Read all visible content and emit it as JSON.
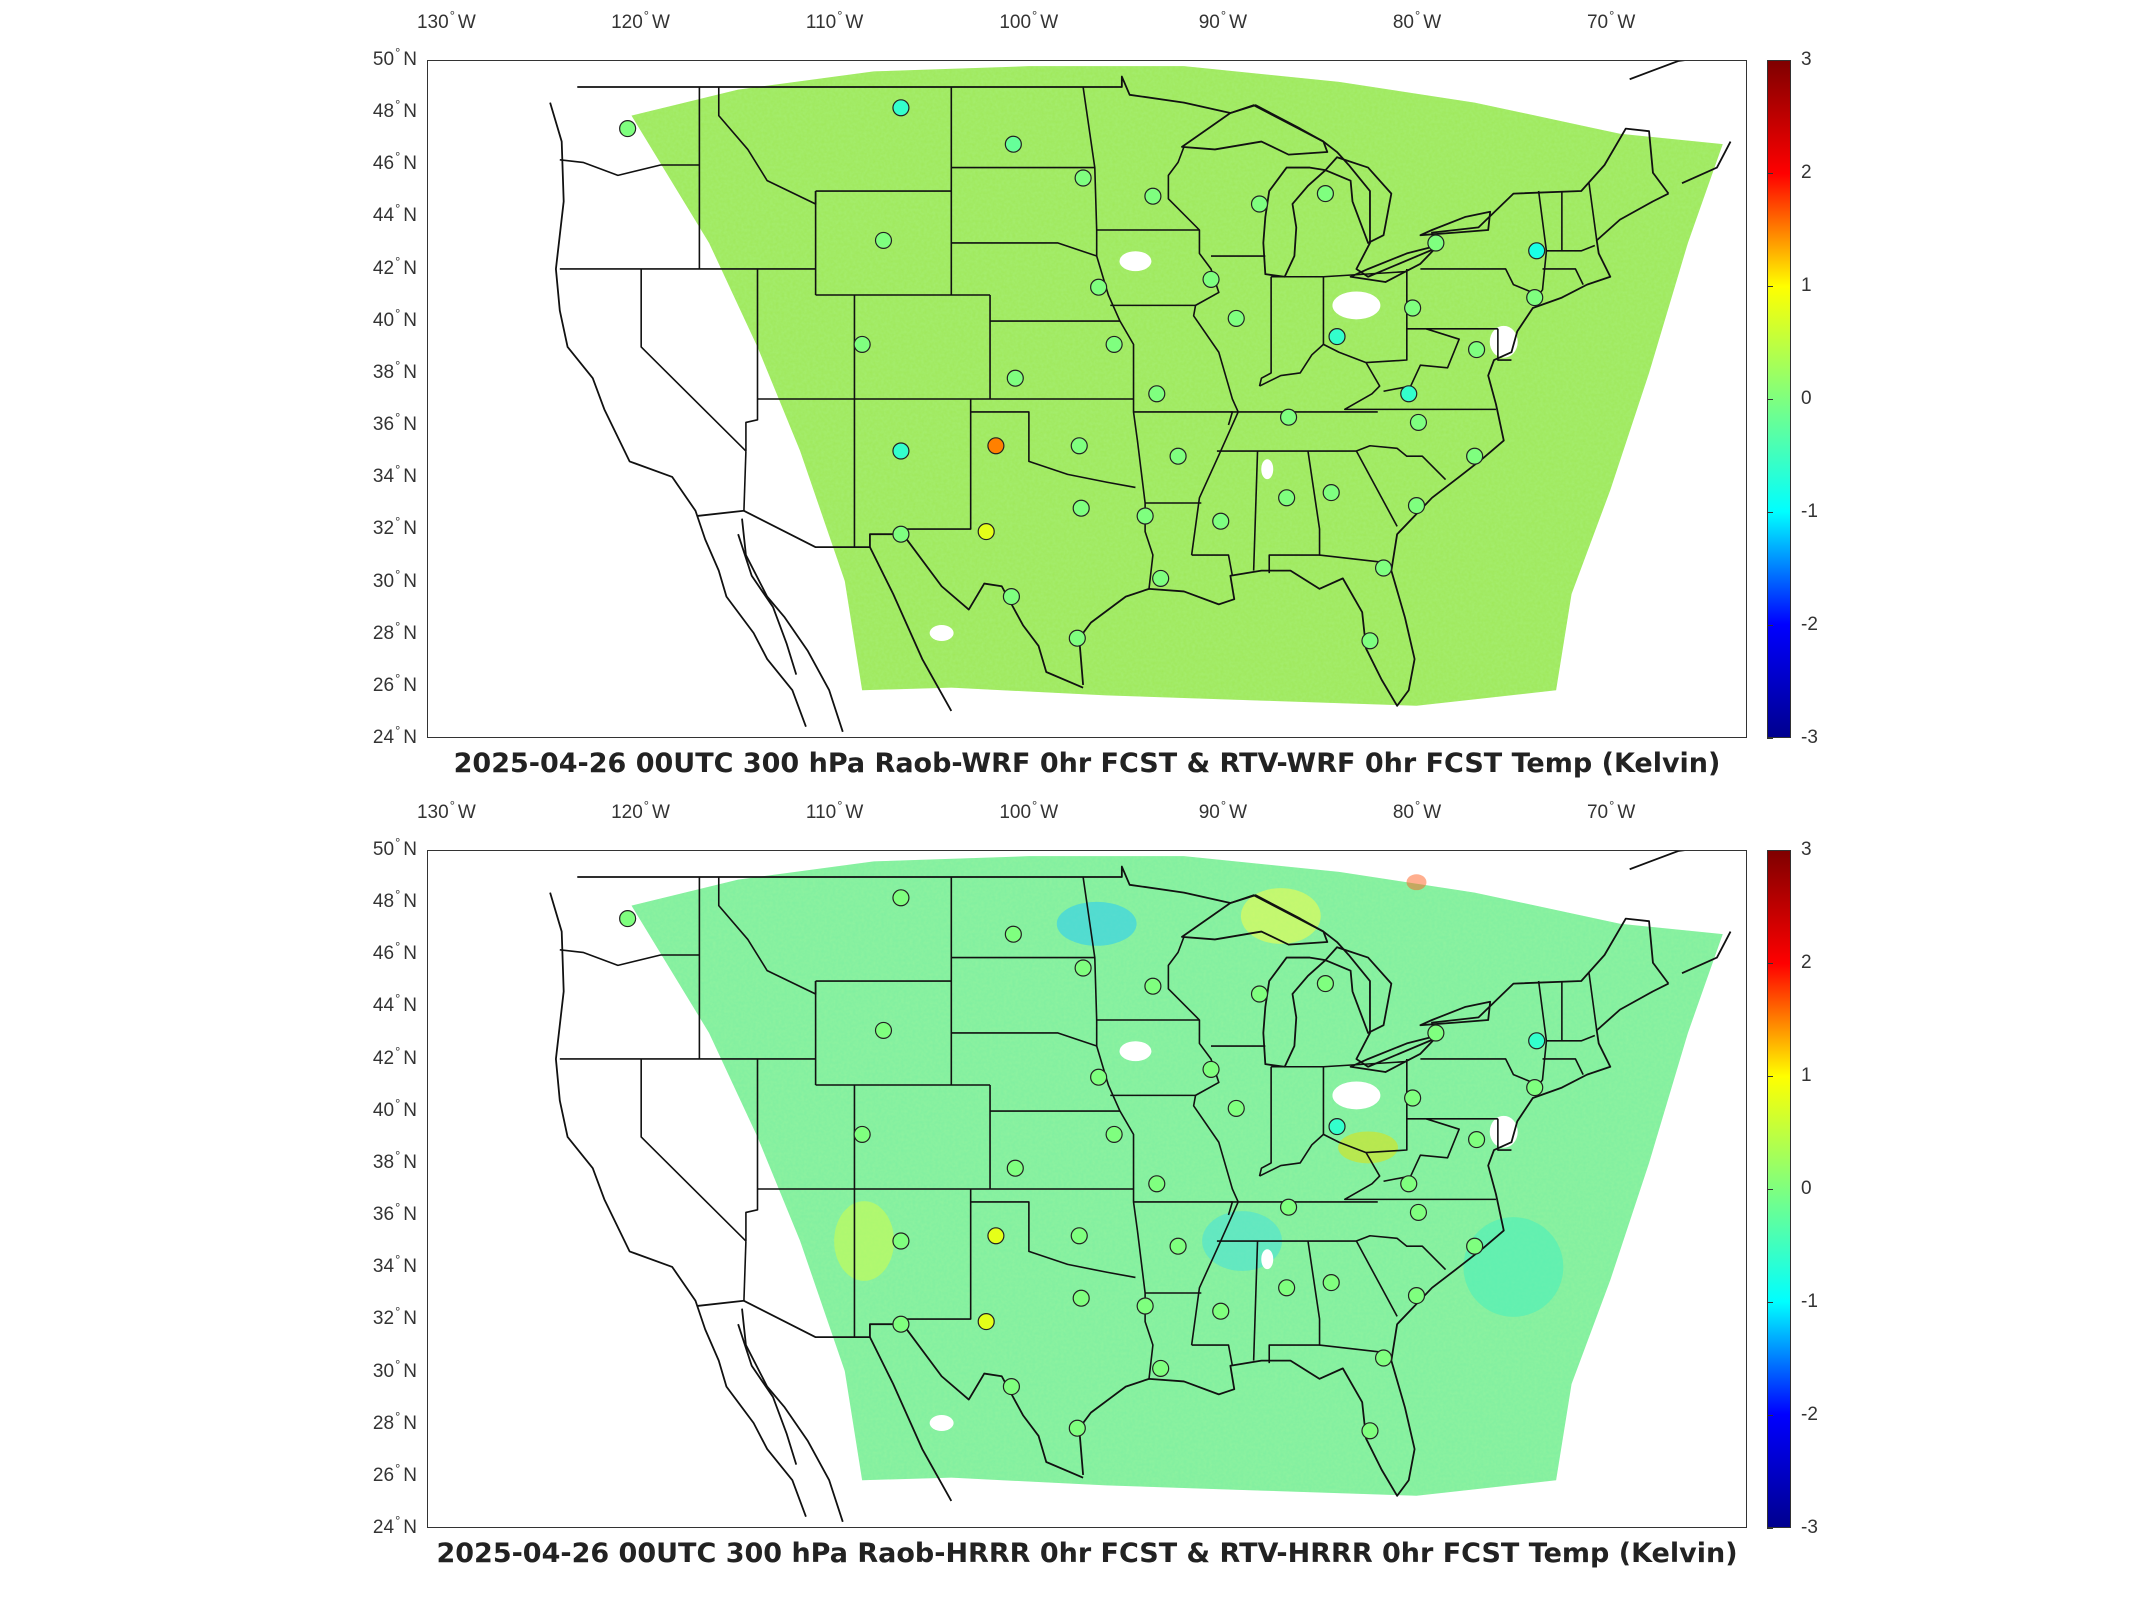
{
  "axes": {
    "lon_ticks": [
      {
        "deg": "130",
        "hemi": "W"
      },
      {
        "deg": "120",
        "hemi": "W"
      },
      {
        "deg": "110",
        "hemi": "W"
      },
      {
        "deg": "100",
        "hemi": "W"
      },
      {
        "deg": "90",
        "hemi": "W"
      },
      {
        "deg": "80",
        "hemi": "W"
      },
      {
        "deg": "70",
        "hemi": "W"
      }
    ],
    "lat_ticks": [
      {
        "deg": "50",
        "hemi": "N"
      },
      {
        "deg": "48",
        "hemi": "N"
      },
      {
        "deg": "46",
        "hemi": "N"
      },
      {
        "deg": "44",
        "hemi": "N"
      },
      {
        "deg": "42",
        "hemi": "N"
      },
      {
        "deg": "40",
        "hemi": "N"
      },
      {
        "deg": "38",
        "hemi": "N"
      },
      {
        "deg": "36",
        "hemi": "N"
      },
      {
        "deg": "34",
        "hemi": "N"
      },
      {
        "deg": "32",
        "hemi": "N"
      },
      {
        "deg": "30",
        "hemi": "N"
      },
      {
        "deg": "28",
        "hemi": "N"
      },
      {
        "deg": "26",
        "hemi": "N"
      },
      {
        "deg": "24",
        "hemi": "N"
      }
    ]
  },
  "colorbar": {
    "ticks": [
      "3",
      "2",
      "1",
      "0",
      "-1",
      "-2",
      "-3"
    ],
    "range": [
      -3,
      3
    ],
    "colormap": [
      "#00008f",
      "#0000ff",
      "#00ffff",
      "#7fff7f",
      "#ffff00",
      "#ff0000",
      "#7f0000"
    ]
  },
  "panels": [
    {
      "title": "2025-04-26 00UTC 300 hPa Raob-WRF 0hr FCST & RTV-WRF 0hr FCST Temp (Kelvin)",
      "field_color": "#9fe85a",
      "stations": [
        {
          "lon": -120.7,
          "lat": 47.4,
          "value": 0.0
        },
        {
          "lon": -106.6,
          "lat": 48.2,
          "value": -0.6
        },
        {
          "lon": -100.8,
          "lat": 46.8,
          "value": -0.2
        },
        {
          "lon": -97.2,
          "lat": 45.5,
          "value": 0.0
        },
        {
          "lon": -93.6,
          "lat": 44.8,
          "value": 0.0
        },
        {
          "lon": -88.1,
          "lat": 44.5,
          "value": 0.0
        },
        {
          "lon": -84.7,
          "lat": 44.9,
          "value": 0.0
        },
        {
          "lon": -107.5,
          "lat": 43.1,
          "value": 0.0
        },
        {
          "lon": -96.4,
          "lat": 41.3,
          "value": 0.0
        },
        {
          "lon": -90.6,
          "lat": 41.6,
          "value": 0.0
        },
        {
          "lon": -79.0,
          "lat": 43.0,
          "value": 0.0
        },
        {
          "lon": -73.8,
          "lat": 42.7,
          "value": -0.8
        },
        {
          "lon": -89.3,
          "lat": 40.1,
          "value": 0.0
        },
        {
          "lon": -80.2,
          "lat": 40.5,
          "value": 0.0
        },
        {
          "lon": -84.1,
          "lat": 39.4,
          "value": -0.6
        },
        {
          "lon": -108.6,
          "lat": 39.1,
          "value": 0.0
        },
        {
          "lon": -100.7,
          "lat": 37.8,
          "value": 0.0
        },
        {
          "lon": -95.6,
          "lat": 39.1,
          "value": 0.0
        },
        {
          "lon": -93.4,
          "lat": 37.2,
          "value": 0.0
        },
        {
          "lon": -86.6,
          "lat": 36.3,
          "value": 0.0
        },
        {
          "lon": -80.4,
          "lat": 37.2,
          "value": -0.6
        },
        {
          "lon": -79.9,
          "lat": 36.1,
          "value": 0.0
        },
        {
          "lon": -76.9,
          "lat": 38.9,
          "value": 0.0
        },
        {
          "lon": -73.9,
          "lat": 40.9,
          "value": 0.0
        },
        {
          "lon": -106.6,
          "lat": 35.0,
          "value": -0.6
        },
        {
          "lon": -101.7,
          "lat": 35.2,
          "value": 1.5
        },
        {
          "lon": -97.4,
          "lat": 35.2,
          "value": 0.0
        },
        {
          "lon": -92.3,
          "lat": 34.8,
          "value": 0.0
        },
        {
          "lon": -97.3,
          "lat": 32.8,
          "value": 0.0
        },
        {
          "lon": -102.2,
          "lat": 31.9,
          "value": 0.8
        },
        {
          "lon": -106.6,
          "lat": 31.8,
          "value": 0.0
        },
        {
          "lon": -100.9,
          "lat": 29.4,
          "value": 0.0
        },
        {
          "lon": -97.5,
          "lat": 27.8,
          "value": 0.0
        },
        {
          "lon": -93.2,
          "lat": 30.1,
          "value": 0.0
        },
        {
          "lon": -90.1,
          "lat": 32.3,
          "value": 0.0
        },
        {
          "lon": -86.7,
          "lat": 33.2,
          "value": 0.0
        },
        {
          "lon": -84.4,
          "lat": 33.4,
          "value": 0.0
        },
        {
          "lon": -81.7,
          "lat": 30.5,
          "value": 0.0
        },
        {
          "lon": -82.4,
          "lat": 27.7,
          "value": 0.0
        },
        {
          "lon": -80.0,
          "lat": 32.9,
          "value": 0.0
        },
        {
          "lon": -77.0,
          "lat": 34.8,
          "value": 0.0
        },
        {
          "lon": -94.0,
          "lat": 32.5,
          "value": 0.0
        }
      ]
    },
    {
      "title": "2025-04-26 00UTC 300 hPa Raob-HRRR 0hr FCST & RTV-HRRR 0hr FCST Temp (Kelvin)",
      "field_color": "#7fefa0",
      "stations": [
        {
          "lon": -120.7,
          "lat": 47.4,
          "value": 0.0
        },
        {
          "lon": -106.6,
          "lat": 48.2,
          "value": 0.0
        },
        {
          "lon": -100.8,
          "lat": 46.8,
          "value": 0.0
        },
        {
          "lon": -97.2,
          "lat": 45.5,
          "value": 0.0
        },
        {
          "lon": -93.6,
          "lat": 44.8,
          "value": 0.0
        },
        {
          "lon": -88.1,
          "lat": 44.5,
          "value": 0.0
        },
        {
          "lon": -84.7,
          "lat": 44.9,
          "value": 0.0
        },
        {
          "lon": -107.5,
          "lat": 43.1,
          "value": 0.0
        },
        {
          "lon": -96.4,
          "lat": 41.3,
          "value": 0.0
        },
        {
          "lon": -90.6,
          "lat": 41.6,
          "value": 0.0
        },
        {
          "lon": -79.0,
          "lat": 43.0,
          "value": 0.0
        },
        {
          "lon": -73.8,
          "lat": 42.7,
          "value": -0.6
        },
        {
          "lon": -89.3,
          "lat": 40.1,
          "value": 0.0
        },
        {
          "lon": -80.2,
          "lat": 40.5,
          "value": 0.0
        },
        {
          "lon": -84.1,
          "lat": 39.4,
          "value": -0.6
        },
        {
          "lon": -108.6,
          "lat": 39.1,
          "value": 0.0
        },
        {
          "lon": -100.7,
          "lat": 37.8,
          "value": 0.0
        },
        {
          "lon": -95.6,
          "lat": 39.1,
          "value": 0.0
        },
        {
          "lon": -93.4,
          "lat": 37.2,
          "value": 0.0
        },
        {
          "lon": -86.6,
          "lat": 36.3,
          "value": 0.0
        },
        {
          "lon": -80.4,
          "lat": 37.2,
          "value": 0.0
        },
        {
          "lon": -79.9,
          "lat": 36.1,
          "value": 0.0
        },
        {
          "lon": -76.9,
          "lat": 38.9,
          "value": 0.0
        },
        {
          "lon": -73.9,
          "lat": 40.9,
          "value": 0.0
        },
        {
          "lon": -106.6,
          "lat": 35.0,
          "value": 0.0
        },
        {
          "lon": -101.7,
          "lat": 35.2,
          "value": 0.8
        },
        {
          "lon": -97.4,
          "lat": 35.2,
          "value": 0.0
        },
        {
          "lon": -92.3,
          "lat": 34.8,
          "value": 0.0
        },
        {
          "lon": -97.3,
          "lat": 32.8,
          "value": 0.0
        },
        {
          "lon": -102.2,
          "lat": 31.9,
          "value": 0.8
        },
        {
          "lon": -106.6,
          "lat": 31.8,
          "value": 0.0
        },
        {
          "lon": -100.9,
          "lat": 29.4,
          "value": 0.0
        },
        {
          "lon": -97.5,
          "lat": 27.8,
          "value": 0.0
        },
        {
          "lon": -93.2,
          "lat": 30.1,
          "value": 0.0
        },
        {
          "lon": -90.1,
          "lat": 32.3,
          "value": 0.0
        },
        {
          "lon": -86.7,
          "lat": 33.2,
          "value": 0.0
        },
        {
          "lon": -84.4,
          "lat": 33.4,
          "value": 0.0
        },
        {
          "lon": -81.7,
          "lat": 30.5,
          "value": 0.0
        },
        {
          "lon": -82.4,
          "lat": 27.7,
          "value": 0.0
        },
        {
          "lon": -80.0,
          "lat": 32.9,
          "value": 0.0
        },
        {
          "lon": -77.0,
          "lat": 34.8,
          "value": 0.0
        },
        {
          "lon": -94.0,
          "lat": 32.5,
          "value": 0.0
        }
      ]
    }
  ]
}
